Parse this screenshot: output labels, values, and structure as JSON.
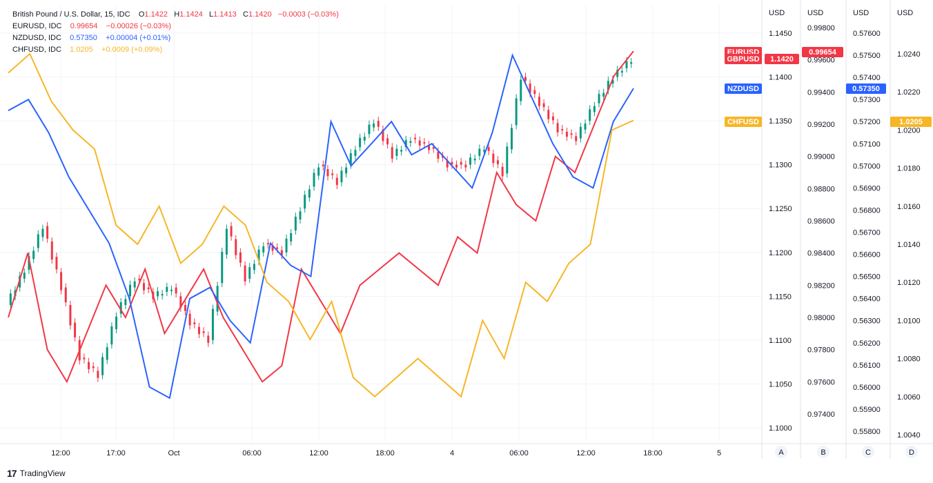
{
  "legend": [
    {
      "symbol": "British Pound / U.S. Dollar, 15, IDC",
      "o_label": "O",
      "o": "1.1422",
      "h_label": "H",
      "h": "1.1424",
      "l_label": "L",
      "l": "1.1413",
      "c_label": "C",
      "c": "1.1420",
      "change": "−0.0003 (−0.03%)",
      "color": "#f23645"
    },
    {
      "symbol": "EURUSD, IDC",
      "value": "0.99654",
      "change": "−0.00026 (−0.03%)",
      "color": "#f23645"
    },
    {
      "symbol": "NZDUSD, IDC",
      "value": "0.57350",
      "change": "+0.00004 (+0.01%)",
      "color": "#2962ff"
    },
    {
      "symbol": "CHFUSD, IDC",
      "value": "1.0205",
      "change": "+0.0009 (+0.09%)",
      "color": "#f7b626"
    }
  ],
  "axes": [
    {
      "id": "A",
      "header": "USD",
      "ticks": [
        "1.1450",
        "1.1400",
        "1.1350",
        "1.1300",
        "1.1250",
        "1.1200",
        "1.1150",
        "1.1100",
        "1.1050",
        "1.1000"
      ]
    },
    {
      "id": "B",
      "header": "USD",
      "ticks": [
        "0.99800",
        "0.99600",
        "0.99400",
        "0.99200",
        "0.99000",
        "0.98800",
        "0.98600",
        "0.98400",
        "0.98200",
        "0.98000",
        "0.97800",
        "0.97600",
        "0.97400"
      ]
    },
    {
      "id": "C",
      "header": "USD",
      "ticks": [
        "0.57600",
        "0.57500",
        "0.57400",
        "0.57300",
        "0.57200",
        "0.57100",
        "0.57000",
        "0.56900",
        "0.56800",
        "0.56700",
        "0.56600",
        "0.56500",
        "0.56400",
        "0.56300",
        "0.56200",
        "0.56100",
        "0.56000",
        "0.55900",
        "0.55800"
      ]
    },
    {
      "id": "D",
      "header": "USD",
      "ticks": [
        "1.0240",
        "1.0220",
        "1.0200",
        "1.0180",
        "1.0160",
        "1.0140",
        "1.0120",
        "1.0100",
        "1.0080",
        "1.0060",
        "1.0040"
      ]
    }
  ],
  "badges": [
    {
      "label": "EURUSD",
      "color": "#f23645"
    },
    {
      "label": "GBPUSD",
      "color": "#f23645"
    },
    {
      "label": "NZDUSD",
      "color": "#2962ff"
    },
    {
      "label": "CHFUSD",
      "color": "#f7b626"
    },
    {
      "label": "1.1420",
      "color": "#f23645"
    },
    {
      "label": "0.99654",
      "color": "#f23645"
    },
    {
      "label": "0.57350",
      "color": "#2962ff"
    },
    {
      "label": "1.0205",
      "color": "#f7b626"
    }
  ],
  "time_labels": [
    "12:00",
    "17:00",
    "Oct",
    "06:00",
    "12:00",
    "18:00",
    "4",
    "06:00",
    "12:00",
    "18:00",
    "5"
  ],
  "footer": {
    "brand": "TradingView",
    "logo": "17"
  },
  "chart_data": {
    "type": "line",
    "title": "British Pound / U.S. Dollar, 15, IDC",
    "x": [
      "12:00",
      "17:00",
      "Oct",
      "06:00",
      "12:00",
      "18:00",
      "4",
      "06:00",
      "12:00",
      "18:00",
      "5"
    ],
    "series": [
      {
        "name": "GBPUSD",
        "axis": "A",
        "color": "#089981",
        "style": "candles",
        "points": [
          1.114,
          1.118,
          1.123,
          1.116,
          1.108,
          1.106,
          1.113,
          1.117,
          1.115,
          1.116,
          1.112,
          1.11,
          1.123,
          1.117,
          1.121,
          1.12,
          1.125,
          1.13,
          1.128,
          1.132,
          1.135,
          1.131,
          1.133,
          1.132,
          1.13,
          1.13,
          1.132,
          1.129,
          1.14,
          1.137,
          1.134,
          1.133,
          1.137,
          1.14,
          1.142
        ]
      },
      {
        "name": "EURUSD",
        "axis": "B",
        "color": "#f23645",
        "points": [
          0.98,
          0.984,
          0.978,
          0.976,
          0.979,
          0.982,
          0.98,
          0.983,
          0.979,
          0.981,
          0.983,
          0.98,
          0.978,
          0.976,
          0.977,
          0.983,
          0.981,
          0.979,
          0.982,
          0.983,
          0.984,
          0.983,
          0.982,
          0.985,
          0.984,
          0.989,
          0.987,
          0.986,
          0.99,
          0.989,
          0.992,
          0.995,
          0.99654
        ]
      },
      {
        "name": "NZDUSD",
        "axis": "C",
        "color": "#2962ff",
        "points": [
          0.5725,
          0.573,
          0.5715,
          0.5695,
          0.568,
          0.5665,
          0.564,
          0.56,
          0.5595,
          0.564,
          0.5645,
          0.563,
          0.562,
          0.5665,
          0.5655,
          0.565,
          0.572,
          0.57,
          0.571,
          0.572,
          0.5705,
          0.571,
          0.57,
          0.569,
          0.5715,
          0.575,
          0.573,
          0.571,
          0.5695,
          0.569,
          0.572,
          0.5735
        ]
      },
      {
        "name": "CHFUSD",
        "axis": "D",
        "color": "#f7b626",
        "points": [
          1.023,
          1.024,
          1.0215,
          1.02,
          1.019,
          1.015,
          1.014,
          1.016,
          1.013,
          1.014,
          1.016,
          1.015,
          1.012,
          1.011,
          1.009,
          1.011,
          1.007,
          1.006,
          1.007,
          1.008,
          1.007,
          1.006,
          1.01,
          1.008,
          1.012,
          1.011,
          1.013,
          1.014,
          1.02,
          1.0205
        ]
      }
    ]
  }
}
